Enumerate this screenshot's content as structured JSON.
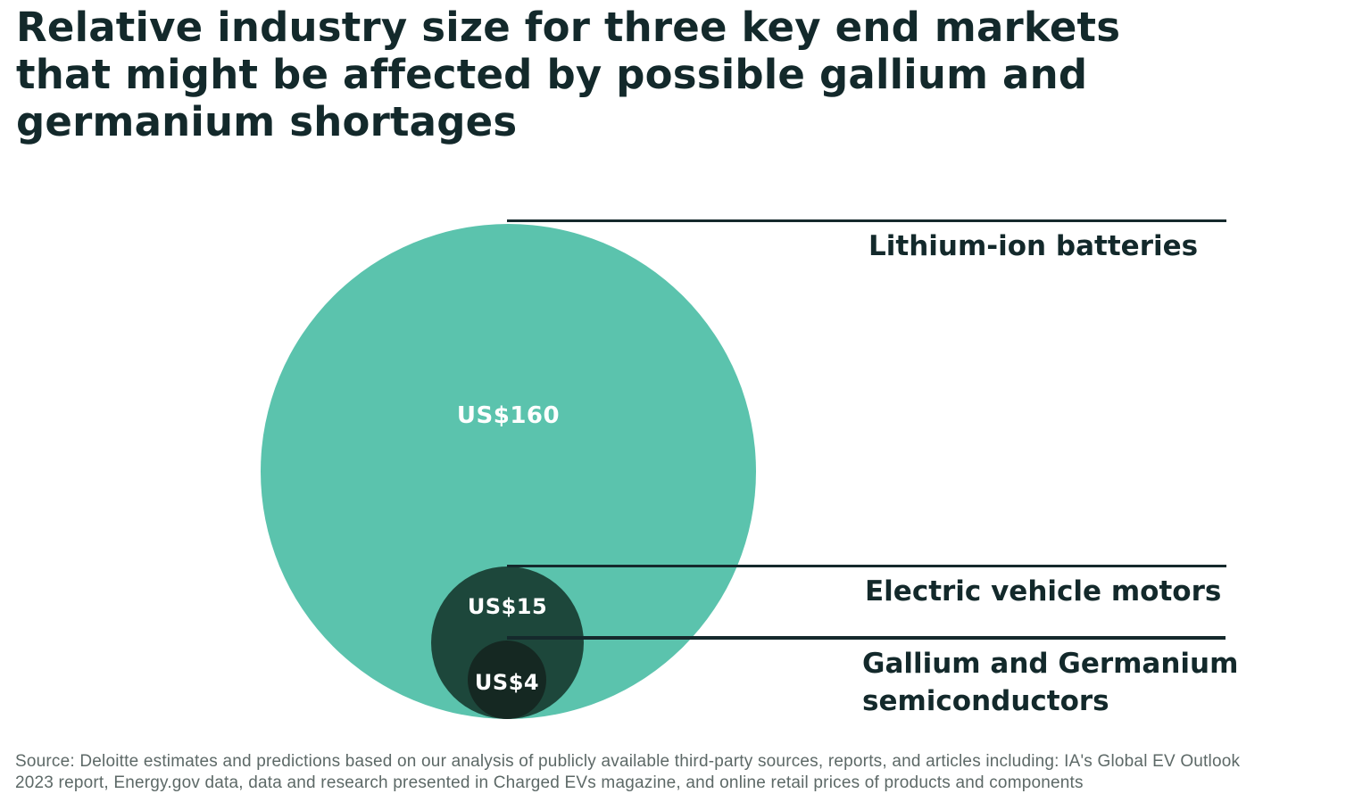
{
  "title": "Relative industry size for three key end markets that might be affected by possible gallium and germanium shortages",
  "title_lines": [
    "Relative industry size for three key end markets",
    "that might be affected by possible gallium and",
    "germanium shortages"
  ],
  "chart_data": {
    "type": "scatter",
    "subtype": "proportional-area-bubble-chart",
    "title": "Relative industry size for three key end markets that might be affected by possible gallium and germanium shortages",
    "value_unit_prefix": "US$",
    "series": [
      {
        "label": "Lithium-ion batteries",
        "value": 160,
        "value_label": "US$160",
        "bubble_color": "#5bc3ad",
        "value_text_color": "#ffffff"
      },
      {
        "label": "Electric vehicle motors",
        "value": 15,
        "value_label": "US$15",
        "bubble_color": "#1d473b",
        "value_text_color": "#ffffff"
      },
      {
        "label": "Gallium and Germanium semiconductors",
        "value": 4,
        "value_label": "US$4",
        "bubble_color": "#152822",
        "value_text_color": "#ffffff"
      }
    ],
    "layout": {
      "arrangement": "nested circles, bottom-aligned, concentric on a shared vertical axis",
      "area_proportional_to_value": true,
      "leader_lines": "horizontal line from top tangent of each circle to right-side label",
      "labels_position": "right"
    }
  },
  "source_lines": [
    "Source: Deloitte estimates and predictions based on our analysis of publicly available third-party sources, reports, and articles including: IA's Global EV Outlook",
    "2023 report, Energy.gov data, data and research presented in Charged EVs magazine, and online retail prices of products and components"
  ],
  "colors": {
    "background": "#ffffff",
    "title_text": "#13292b",
    "series_label_text": "#13292b",
    "leader_line": "#15292c",
    "source_text": "#5d6967",
    "bubble_large": "#5bc3ad",
    "bubble_medium": "#1d473b",
    "bubble_small": "#152822",
    "bubble_value_text": "#ffffff"
  }
}
